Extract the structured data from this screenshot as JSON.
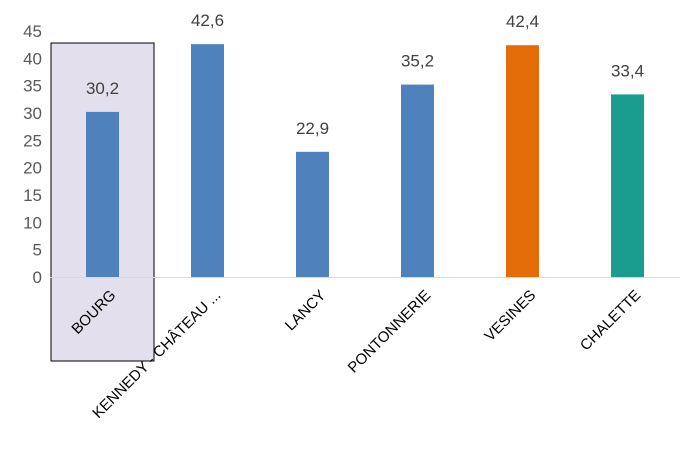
{
  "chart_data": {
    "type": "bar",
    "categories": [
      "BOURG",
      "KENNEDY - CHÂTEAU ...",
      "LANCY",
      "PONTONNERIE",
      "VESINES",
      "CHALETTE"
    ],
    "values": [
      30.2,
      42.6,
      22.9,
      35.2,
      42.4,
      33.4
    ],
    "value_labels": [
      "30,2",
      "42,6",
      "22,9",
      "35,2",
      "42,4",
      "33,4"
    ],
    "bar_colors": [
      "#4f81bd",
      "#4f81bd",
      "#4f81bd",
      "#4f81bd",
      "#e36c09",
      "#1a9c8f"
    ],
    "highlight_category": "BOURG",
    "highlight_fill": "#e4dfec",
    "ylim": [
      0,
      45
    ],
    "yticks": [
      "0",
      "5",
      "10",
      "15",
      "20",
      "25",
      "30",
      "35",
      "40",
      "45"
    ],
    "grid": false,
    "legend": "none",
    "title": "",
    "xlabel": "",
    "ylabel": ""
  }
}
